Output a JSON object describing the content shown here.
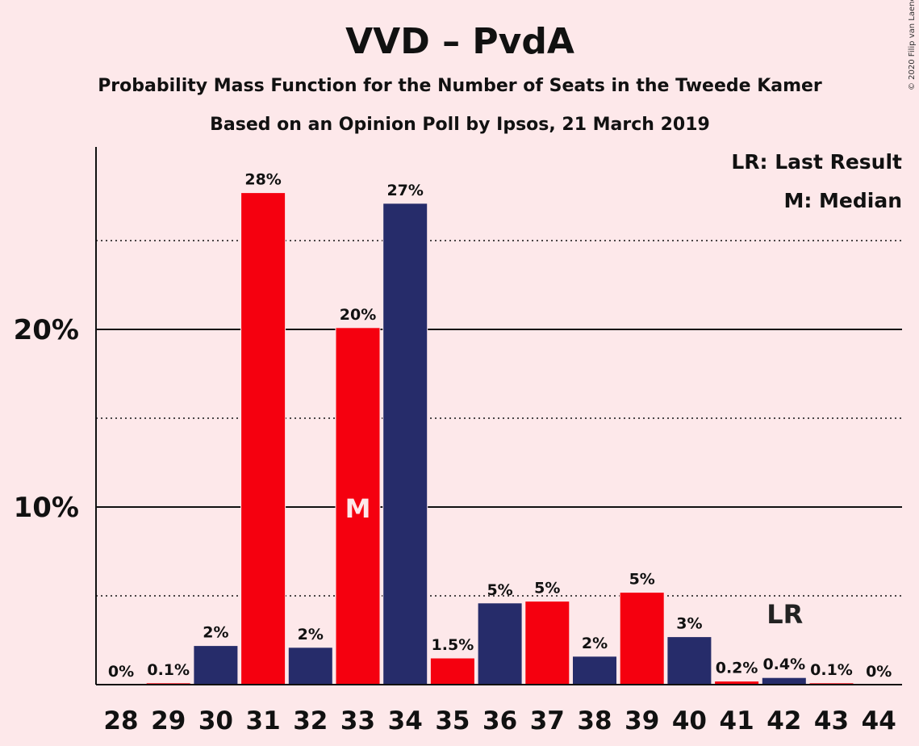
{
  "chart_data": {
    "type": "bar",
    "title": "VVD – PvdA",
    "subtitle": "Probability Mass Function for the Number of Seats in the Tweede Kamer",
    "subtitle2": "Based on an Opinion Poll by Ipsos, 21 March 2019",
    "copyright": "© 2020 Filip van Laenen",
    "legend": {
      "placement": "top-right",
      "entries": [
        "LR: Last Result",
        "M: Median"
      ]
    },
    "categories": [
      "28",
      "29",
      "30",
      "31",
      "32",
      "33",
      "34",
      "35",
      "36",
      "37",
      "38",
      "39",
      "40",
      "41",
      "42",
      "43",
      "44"
    ],
    "values": [
      0,
      0.1,
      2.2,
      27.7,
      2.1,
      20.1,
      27.1,
      1.5,
      4.6,
      4.7,
      1.6,
      5.2,
      2.7,
      0.2,
      0.4,
      0.1,
      0
    ],
    "data_labels": [
      "0%",
      "0.1%",
      "2%",
      "28%",
      "2%",
      "20%",
      "27%",
      "1.5%",
      "5%",
      "5%",
      "2%",
      "5%",
      "3%",
      "0.2%",
      "0.4%",
      "0.1%",
      "0%"
    ],
    "bar_colors": [
      "#1e2a6a",
      "#f5000f",
      "#262c6a",
      "#f5000f",
      "#262c6a",
      "#f5000f",
      "#262c6a",
      "#f5000f",
      "#262c6a",
      "#f5000f",
      "#262c6a",
      "#f5000f",
      "#262c6a",
      "#f5000f",
      "#262c6a",
      "#f5000f",
      "#262c6a"
    ],
    "median_seat": "33",
    "median_marker": "M",
    "last_result_seat": "42",
    "last_result_marker": "LR",
    "ylim": [
      0,
      30
    ],
    "y_major_ticks": [
      10,
      20
    ],
    "y_tick_labels": [
      "10%",
      "20%"
    ],
    "y_minor_gridlines": [
      5,
      15,
      25
    ],
    "grid": true
  }
}
